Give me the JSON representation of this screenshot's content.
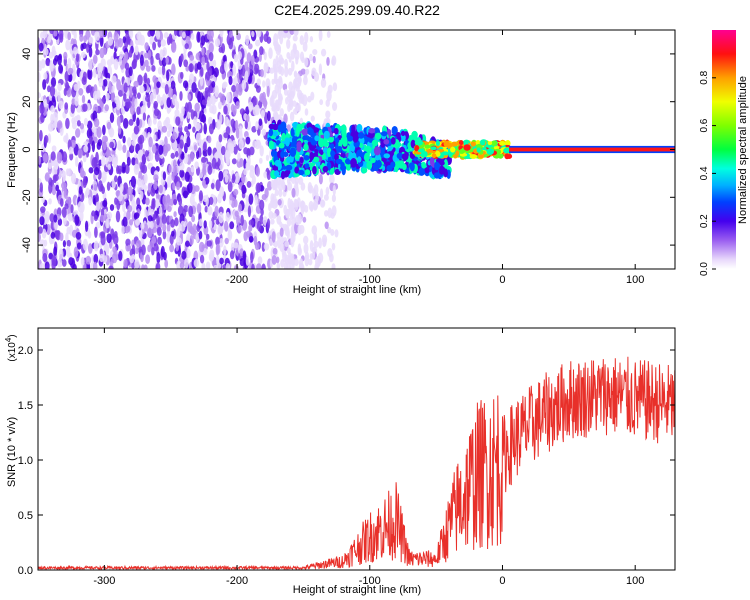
{
  "figure_title": "C2E4.2025.299.09.40.R22",
  "colors": {
    "snr_line": "#e8302a",
    "spectrum_dark": "#3a00d8",
    "spectrum_light": "#c9a8f5",
    "axis": "#000000"
  },
  "chart_data": [
    {
      "type": "heatmap",
      "title": "",
      "xlabel": "Height of straight line (km)",
      "ylabel": "Frequency (Hz)",
      "xlim": [
        -350,
        130
      ],
      "ylim": [
        -50,
        50
      ],
      "xticks": [
        -300,
        -200,
        -100,
        0,
        100
      ],
      "yticks": [
        -40,
        -20,
        0,
        20,
        40
      ],
      "colorbar": {
        "label": "Normalized spectral amplitude",
        "range": [
          0.0,
          1.0
        ],
        "ticks": [
          "0.0",
          "0.2",
          "0.4",
          "0.6",
          "0.8"
        ],
        "tick_values": [
          0.0,
          0.2,
          0.4,
          0.6,
          0.8
        ]
      },
      "description_regions": [
        {
          "x_range": [
            -350,
            -175
          ],
          "freq_range": [
            -50,
            50
          ],
          "amplitude": 0.1
        },
        {
          "x_range": [
            -175,
            -130
          ],
          "freq_range": [
            -50,
            50
          ],
          "amplitude": 0.05
        },
        {
          "x_range": [
            -175,
            -40
          ],
          "freq_range": [
            -12,
            12
          ],
          "amplitude": 0.3
        },
        {
          "x_range": [
            -65,
            5
          ],
          "freq_range": [
            -3,
            4
          ],
          "amplitude": 0.6
        },
        {
          "x_range": [
            5,
            130
          ],
          "freq_range": [
            -1,
            1
          ],
          "amplitude": 0.95
        }
      ]
    },
    {
      "type": "line",
      "title": "",
      "xlabel": "Height of straight line (km)",
      "ylabel": "SNR (10 * v/v)",
      "y_multiplier": "(x10",
      "y_multiplier_exp": "4",
      "xlim": [
        -350,
        130
      ],
      "ylim": [
        0,
        2.2
      ],
      "xticks": [
        -300,
        -200,
        -100,
        0,
        100
      ],
      "yticks": [
        0.0,
        0.5,
        1.0,
        1.5,
        2.0
      ],
      "ytick_labels": [
        "0.0",
        "0.5",
        "1.0",
        "1.5",
        "2.0"
      ],
      "series": [
        {
          "name": "SNR",
          "envelope": [
            {
              "x": -350,
              "y": 0.02
            },
            {
              "x": -150,
              "y": 0.02
            },
            {
              "x": -120,
              "y": 0.08
            },
            {
              "x": -100,
              "y": 0.3
            },
            {
              "x": -80,
              "y": 0.45
            },
            {
              "x": -70,
              "y": 0.1
            },
            {
              "x": -50,
              "y": 0.1
            },
            {
              "x": -35,
              "y": 0.55
            },
            {
              "x": -20,
              "y": 0.85
            },
            {
              "x": -5,
              "y": 0.95
            },
            {
              "x": 10,
              "y": 1.2
            },
            {
              "x": 30,
              "y": 1.4
            },
            {
              "x": 50,
              "y": 1.55
            },
            {
              "x": 80,
              "y": 1.6
            },
            {
              "x": 100,
              "y": 1.55
            },
            {
              "x": 130,
              "y": 1.5
            }
          ]
        }
      ]
    }
  ]
}
